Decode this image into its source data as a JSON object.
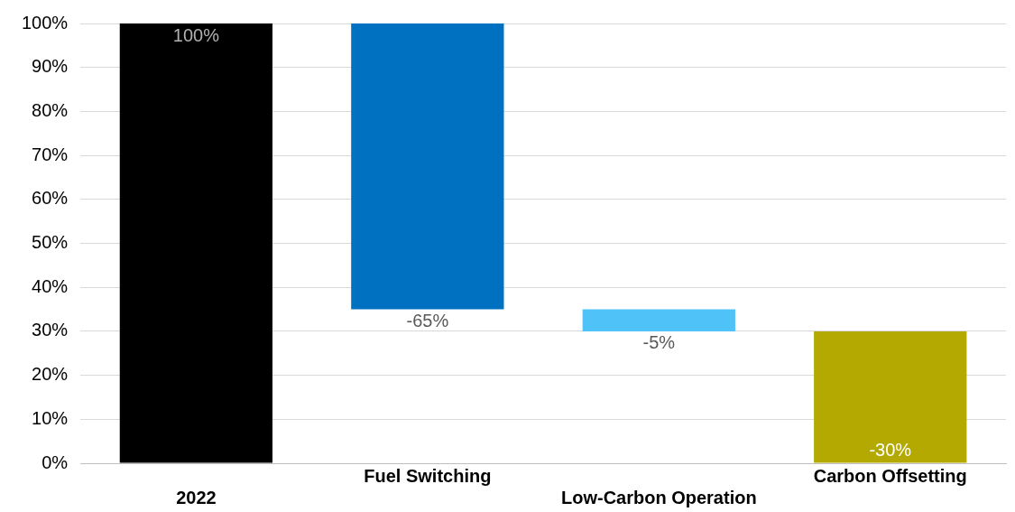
{
  "chart_data": {
    "type": "bar",
    "categories": [
      "2022",
      "Fuel Switching",
      "Low-Carbon Operation",
      "Carbon Offsetting"
    ],
    "values": [
      100,
      -65,
      -5,
      -30
    ],
    "base": [
      0,
      100,
      35,
      30
    ],
    "colors": [
      "#000000",
      "#0070c0",
      "#4fc3f7",
      "#b3a900"
    ],
    "value_labels": [
      "100%",
      "-65%",
      "-5%",
      "-30%"
    ],
    "ylim": [
      0,
      100
    ],
    "yticks": [
      {
        "value": 0,
        "label": "0%"
      },
      {
        "value": 10,
        "label": "10%"
      },
      {
        "value": 20,
        "label": "20%"
      },
      {
        "value": 30,
        "label": "30%"
      },
      {
        "value": 40,
        "label": "40%"
      },
      {
        "value": 50,
        "label": "50%"
      },
      {
        "value": 60,
        "label": "60%"
      },
      {
        "value": 70,
        "label": "70%"
      },
      {
        "value": 80,
        "label": "80%"
      },
      {
        "value": 90,
        "label": "90%"
      },
      {
        "value": 100,
        "label": "100%"
      }
    ],
    "grid": "y",
    "legend": false
  }
}
